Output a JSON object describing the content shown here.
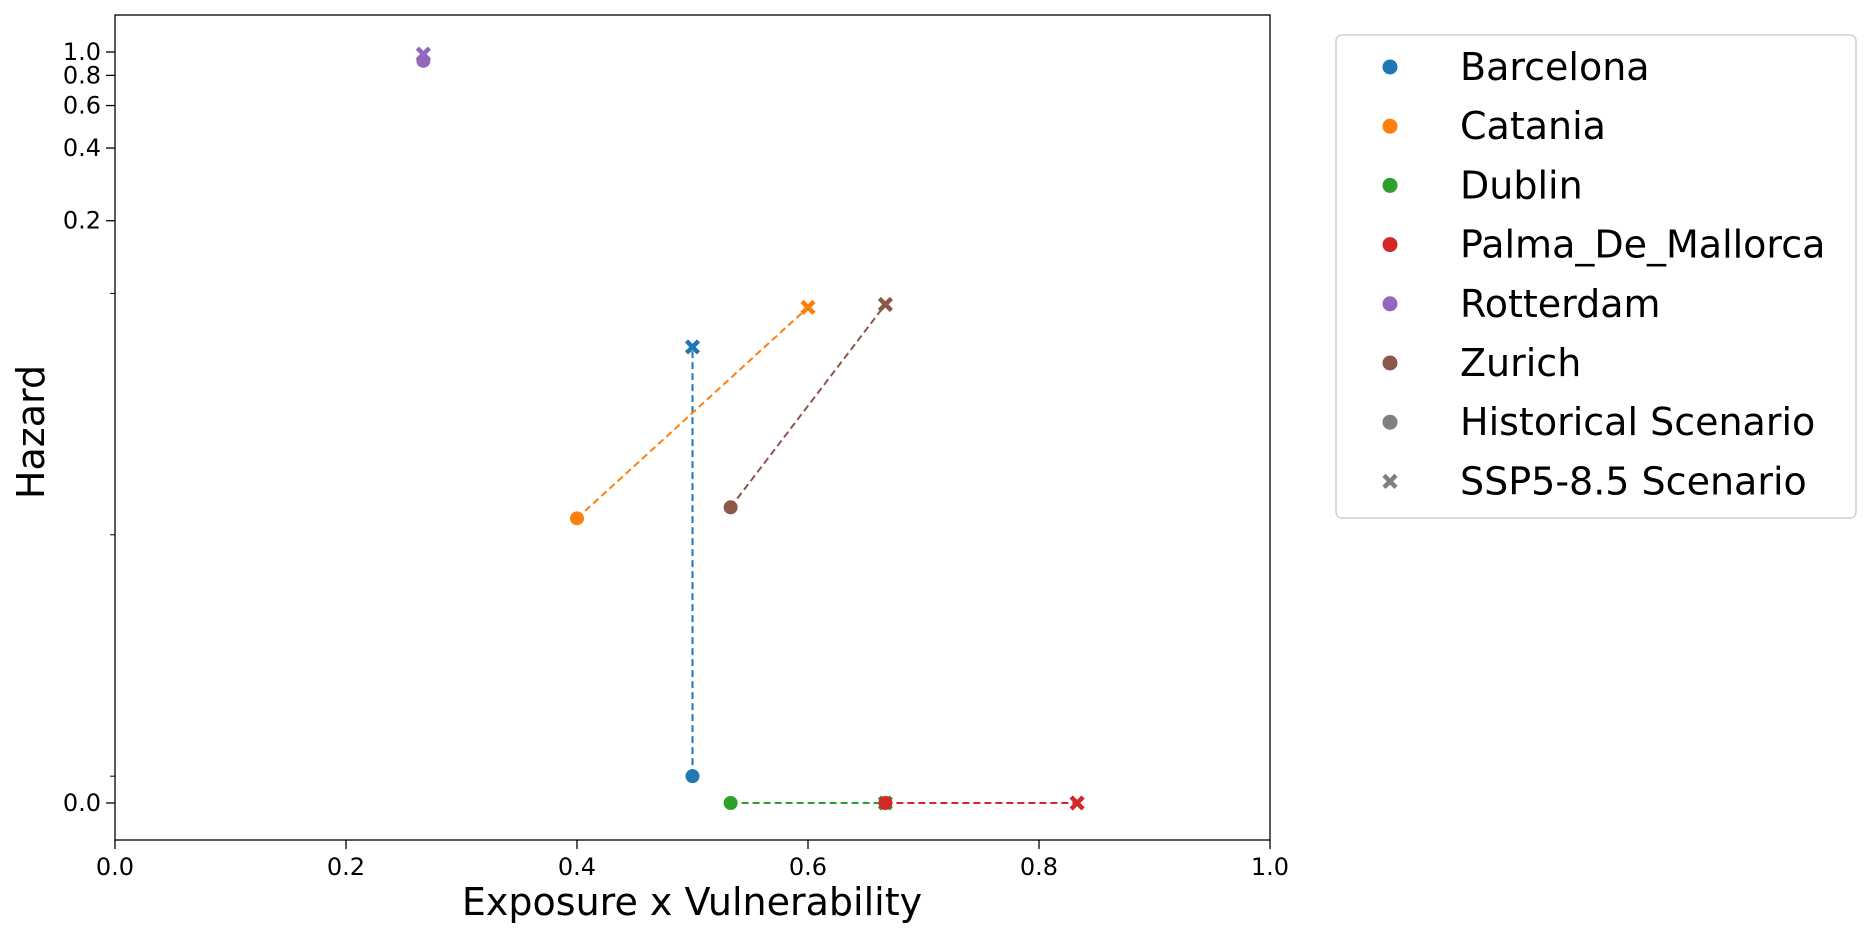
{
  "chart_data": {
    "type": "scatter",
    "xlabel": "Exposure x Vulnerability",
    "ylabel": "Hazard",
    "xlim": [
      0.0,
      1.0
    ],
    "y_scale": "symlog",
    "x_ticks": [
      "0.0",
      "0.2",
      "0.4",
      "0.6",
      "0.8",
      "1.0"
    ],
    "y_ticks": [
      "0.0",
      "0.2",
      "0.4",
      "0.6",
      "0.8",
      "1.0"
    ],
    "legend_position": "outside-right",
    "series": [
      {
        "name": "Barcelona",
        "color": "#1f77b4",
        "historical": [
          0.5,
          0.001
        ],
        "ssp585": [
          0.5,
          0.06
        ]
      },
      {
        "name": "Catania",
        "color": "#ff7f0e",
        "historical": [
          0.4,
          0.0117
        ],
        "ssp585": [
          0.6,
          0.0875
        ]
      },
      {
        "name": "Dublin",
        "color": "#2ca02c",
        "historical": [
          0.533,
          0.0
        ],
        "ssp585": [
          0.667,
          0.0
        ]
      },
      {
        "name": "Palma_De_Mallorca",
        "color": "#d62728",
        "historical": [
          0.667,
          0.0
        ],
        "ssp585": [
          0.833,
          0.0
        ]
      },
      {
        "name": "Rotterdam",
        "color": "#9467bd",
        "historical": [
          0.267,
          0.92
        ],
        "ssp585": [
          0.267,
          0.98
        ]
      },
      {
        "name": "Zurich",
        "color": "#8c564b",
        "historical": [
          0.533,
          0.013
        ],
        "ssp585": [
          0.667,
          0.09
        ]
      }
    ],
    "legend": [
      {
        "label": "Barcelona",
        "color": "#1f77b4",
        "marker": "circle"
      },
      {
        "label": "Catania",
        "color": "#ff7f0e",
        "marker": "circle"
      },
      {
        "label": "Dublin",
        "color": "#2ca02c",
        "marker": "circle"
      },
      {
        "label": "Palma_De_Mallorca",
        "color": "#d62728",
        "marker": "circle"
      },
      {
        "label": "Rotterdam",
        "color": "#9467bd",
        "marker": "circle"
      },
      {
        "label": "Zurich",
        "color": "#8c564b",
        "marker": "circle"
      },
      {
        "label": "Historical Scenario",
        "color": "#808080",
        "marker": "circle"
      },
      {
        "label": "SSP5-8.5 Scenario",
        "color": "#808080",
        "marker": "x"
      }
    ]
  }
}
